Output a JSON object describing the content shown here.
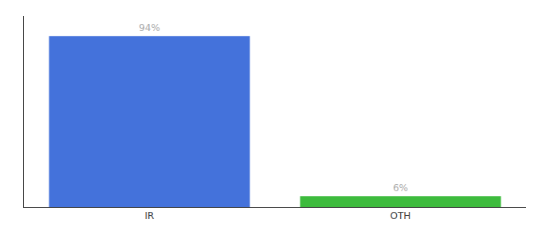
{
  "chart_data": {
    "type": "bar",
    "categories": [
      "IR",
      "OTH"
    ],
    "values": [
      94,
      6
    ],
    "value_labels": [
      "94%",
      "6%"
    ],
    "colors": [
      "#4472db",
      "#3dbb3d"
    ],
    "ylim": [
      0,
      105
    ],
    "data_labels": true,
    "tick_labels": "x",
    "grid": false
  }
}
